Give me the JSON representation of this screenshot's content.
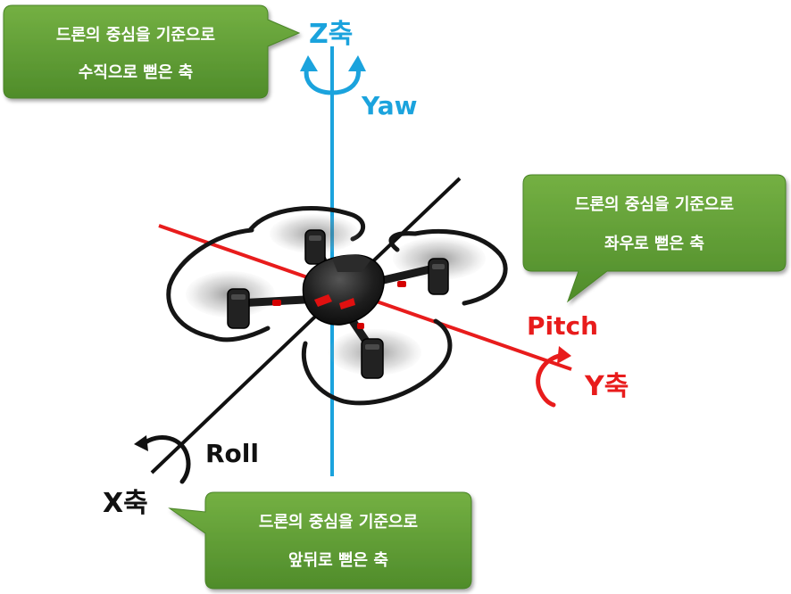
{
  "colors": {
    "z_axis": "#1ba3dd",
    "y_axis": "#e81c1c",
    "x_axis": "#111111",
    "callout_green": "#5e9e34",
    "callout_border": "#4a8428",
    "drone_body": "#1a1a1a",
    "drone_accent": "#d40000"
  },
  "axes": {
    "z": {
      "label": "Z축",
      "rotation_label": "Yaw"
    },
    "y": {
      "label": "Y축",
      "rotation_label": "Pitch"
    },
    "x": {
      "label": "X축",
      "rotation_label": "Roll"
    }
  },
  "callouts": {
    "z": {
      "line1": "드론의 중심을 기준으로",
      "line2": "수직으로 뻗은 축"
    },
    "y": {
      "line1": "드론의 중심을 기준으로",
      "line2": "좌우로 뻗은 축"
    },
    "x": {
      "line1": "드론의 중심을 기준으로",
      "line2": "앞뒤로 뻗은 축"
    }
  },
  "drone": {
    "icon": "quadcopter-drone-icon"
  }
}
